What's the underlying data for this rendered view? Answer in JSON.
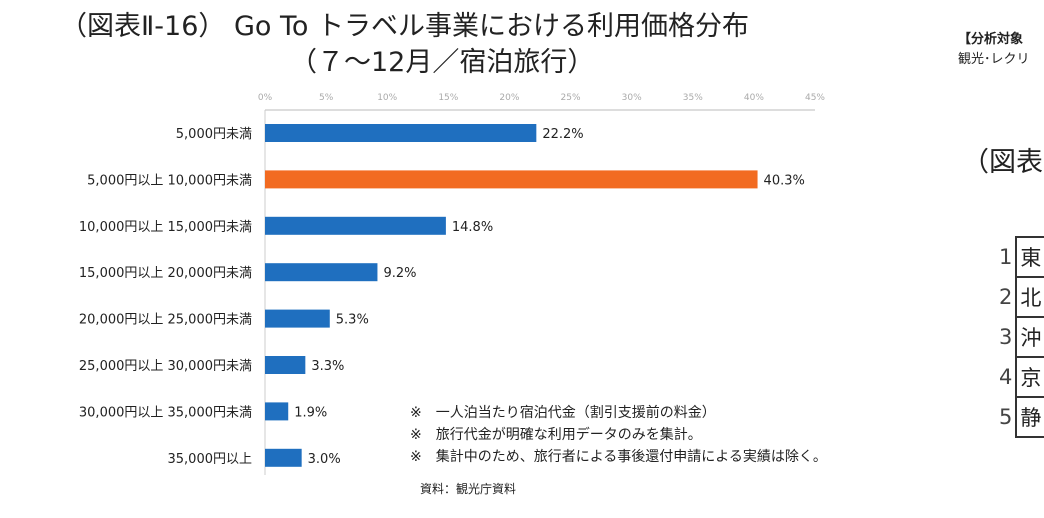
{
  "chart_data": {
    "type": "bar",
    "orientation": "horizontal",
    "title": "（図表Ⅱ-16） Go To トラベル事業における利用価格分布",
    "subtitle": "（７～12月／宿泊旅行）",
    "categories": [
      "5,000円未満",
      "5,000円以上 10,000円未満",
      "10,000円以上 15,000円未満",
      "15,000円以上 20,000円未満",
      "20,000円以上 25,000円未満",
      "25,000円以上 30,000円未満",
      "30,000円以上 35,000円未満",
      "35,000円以上"
    ],
    "values": [
      22.2,
      40.3,
      14.8,
      9.2,
      5.3,
      3.3,
      1.9,
      3.0
    ],
    "data_labels": [
      "22.2%",
      "40.3%",
      "14.8%",
      "9.2%",
      "5.3%",
      "3.3%",
      "1.9%",
      "3.0%"
    ],
    "xlim": [
      0,
      45
    ],
    "xticks": [
      "0%",
      "5%",
      "10%",
      "15%",
      "20%",
      "25%",
      "30%",
      "35%",
      "40%",
      "45%"
    ],
    "axis_position": "top",
    "grid": false,
    "colors": {
      "default": "#1f6fbf",
      "highlight": "#f26b21"
    },
    "highlight_index": 1
  },
  "notes": [
    "※　一人泊当たり宿泊代金（割引支援前の料金）",
    "※　旅行代金が明確な利用データのみを集計。",
    "※　集計中のため、旅行者による事後還付申請による実績は除く。"
  ],
  "source": "資料：観光庁資料",
  "side": {
    "heading": "【分析対象",
    "subtext": "観光･レクリ",
    "title": "（図表",
    "ranks": [
      {
        "n": "1",
        "t": "東"
      },
      {
        "n": "2",
        "t": "北"
      },
      {
        "n": "3",
        "t": "沖"
      },
      {
        "n": "4",
        "t": "京"
      },
      {
        "n": "5",
        "t": "静"
      }
    ]
  }
}
